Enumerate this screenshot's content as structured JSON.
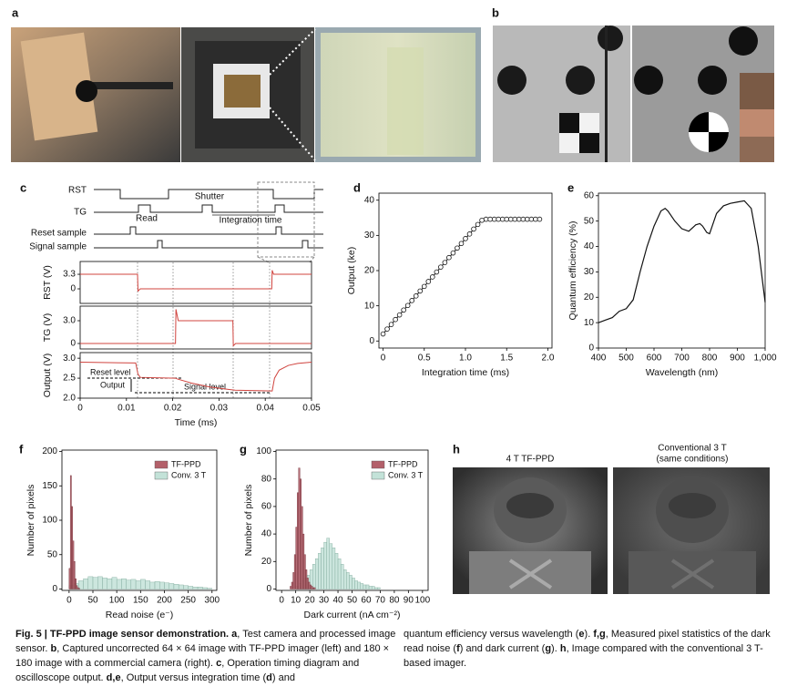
{
  "panel_labels": [
    "a",
    "b",
    "c",
    "d",
    "e",
    "f",
    "g",
    "h"
  ],
  "panel_c": {
    "timing": {
      "signals": [
        "RST",
        "TG",
        "Reset sample",
        "Signal sample"
      ],
      "annotations": [
        "Read",
        "Shutter",
        "Integration time"
      ]
    },
    "scope": {
      "xlabel": "Time (ms)",
      "xlim": [
        0,
        0.05
      ],
      "xticks": [
        0,
        0.01,
        0.02,
        0.03,
        0.04,
        0.05
      ],
      "plots": [
        {
          "ylabel": "RST (V)",
          "ylim": [
            -3.3,
            6.2
          ],
          "yticks": [
            0,
            3.3
          ],
          "x": [
            0,
            0.0124,
            0.0125,
            0.013,
            0.02,
            0.0414,
            0.0415,
            0.0418,
            0.05
          ],
          "y": [
            3.3,
            3.3,
            -0.5,
            0,
            0,
            0,
            4.2,
            3.3,
            3.3
          ]
        },
        {
          "ylabel": "TG (V)",
          "ylim": [
            -0.72,
            4.92
          ],
          "yticks": [
            0,
            {
              "value": 3,
              "label": "3.0"
            }
          ],
          "x": [
            0,
            0.0206,
            0.0207,
            0.0212,
            0.033,
            0.0331,
            0.0336,
            0.05
          ],
          "y": [
            0,
            0,
            4.5,
            3.0,
            3.0,
            -0.3,
            0,
            0
          ]
        },
        {
          "ylabel": "Output (V)",
          "ylim": [
            2.0,
            3.14
          ],
          "yticks": [
            {
              "value": 2,
              "label": "2.0"
            },
            2.5,
            {
              "value": 3,
              "label": "3.0"
            }
          ],
          "x": [
            0,
            0.012,
            0.0125,
            0.013,
            0.0206,
            0.021,
            0.024,
            0.028,
            0.032,
            0.0335,
            0.0415,
            0.042,
            0.043,
            0.045,
            0.047,
            0.05
          ],
          "y": [
            2.9,
            2.88,
            2.6,
            2.52,
            2.5,
            2.48,
            2.38,
            2.28,
            2.22,
            2.2,
            2.18,
            2.5,
            2.7,
            2.82,
            2.87,
            2.9
          ]
        }
      ],
      "annotations": [
        "Reset level",
        "Output",
        "Signal level"
      ]
    }
  },
  "panel_d": {
    "xlabel": "Integration time (ms)",
    "ylabel": "Output (ke)",
    "xlim": [
      -0.05,
      2.05
    ],
    "ylim": [
      -2,
      42
    ],
    "xticks": [
      0,
      0.5,
      {
        "value": 1,
        "label": "1.0"
      },
      1.5,
      {
        "value": 2,
        "label": "2.0"
      }
    ],
    "yticks": [
      0,
      10,
      20,
      30,
      40
    ],
    "x": [
      0,
      0.05,
      0.1,
      0.15,
      0.2,
      0.25,
      0.3,
      0.35,
      0.4,
      0.45,
      0.5,
      0.55,
      0.6,
      0.65,
      0.7,
      0.75,
      0.8,
      0.85,
      0.9,
      0.95,
      1.0,
      1.05,
      1.1,
      1.15,
      1.2,
      1.25,
      1.3,
      1.35,
      1.4,
      1.45,
      1.5,
      1.55,
      1.6,
      1.65,
      1.7,
      1.75,
      1.8,
      1.85,
      1.9
    ],
    "values": [
      2.0,
      3.4,
      4.7,
      6.1,
      7.4,
      8.8,
      10.1,
      11.5,
      12.8,
      14.2,
      15.5,
      16.9,
      18.2,
      19.6,
      21.0,
      22.3,
      23.7,
      25.0,
      26.4,
      27.7,
      29.1,
      30.4,
      31.8,
      33.1,
      34.3,
      34.6,
      34.6,
      34.6,
      34.6,
      34.6,
      34.6,
      34.6,
      34.6,
      34.6,
      34.6,
      34.6,
      34.6,
      34.6,
      34.6
    ],
    "color": "#111111"
  },
  "panel_e": {
    "xlabel": "Wavelength (nm)",
    "ylabel": "Quantum efficiency (%)",
    "xlim": [
      400,
      1000
    ],
    "ylim": [
      0,
      61
    ],
    "xticks": [
      400,
      500,
      600,
      700,
      800,
      900,
      {
        "value": 1000,
        "label": "1,000"
      }
    ],
    "yticks": [
      0,
      10,
      20,
      30,
      40,
      50,
      60
    ],
    "x": [
      400,
      425,
      450,
      475,
      500,
      525,
      550,
      575,
      600,
      625,
      640,
      650,
      675,
      700,
      725,
      750,
      765,
      775,
      790,
      800,
      825,
      850,
      875,
      900,
      925,
      950,
      975,
      1000
    ],
    "values": [
      10,
      11,
      12,
      14.5,
      15.5,
      19,
      30,
      40,
      48,
      54,
      55,
      54,
      50,
      47,
      46,
      48.5,
      49,
      48,
      45.5,
      45,
      53,
      56,
      57,
      57.5,
      58,
      55,
      40,
      18
    ],
    "color": "#111111"
  },
  "panel_f": {
    "xlabel": "Read noise (e⁻)",
    "ylabel": "Number of pixels",
    "xlim": [
      -15,
      310
    ],
    "ylim": [
      -2,
      202
    ],
    "xticks": [
      0,
      50,
      100,
      150,
      200,
      250,
      300
    ],
    "yticks": [
      0,
      50,
      100,
      150,
      200
    ],
    "series": [
      {
        "name": "TF-PPD",
        "color": "#b3606a",
        "bins": [
          0,
          2.5,
          5,
          7.5,
          10,
          12.5,
          15,
          17.5,
          20,
          22.5,
          25,
          27.5,
          30
        ],
        "counts": [
          30,
          165,
          120,
          70,
          40,
          15,
          5,
          2,
          1,
          0,
          0,
          0
        ]
      },
      {
        "name": "Conv. 3 T",
        "color": "#c3e2d8",
        "bins": [
          0,
          10,
          20,
          30,
          40,
          50,
          60,
          70,
          80,
          90,
          100,
          110,
          120,
          130,
          140,
          150,
          160,
          170,
          180,
          190,
          200,
          210,
          220,
          230,
          240,
          250,
          260,
          270,
          280,
          290,
          300
        ],
        "counts": [
          5,
          8,
          12,
          15,
          18,
          17,
          18,
          16,
          15,
          17,
          14,
          15,
          13,
          14,
          12,
          14,
          12,
          10,
          11,
          10,
          9,
          8,
          7,
          6,
          5,
          4,
          3,
          3,
          2,
          1
        ]
      }
    ]
  },
  "panel_g": {
    "xlabel": "Dark current (nA cm⁻²)",
    "ylabel": "Number of pixels",
    "xlim": [
      -4,
      104
    ],
    "ylim": [
      -1,
      101
    ],
    "xticks": [
      0,
      10,
      20,
      30,
      40,
      50,
      60,
      70,
      80,
      90,
      100
    ],
    "yticks": [
      0,
      20,
      40,
      60,
      80,
      100
    ],
    "series": [
      {
        "name": "TF-PPD",
        "color": "#b3606a",
        "bins": [
          6,
          7,
          8,
          9,
          10,
          11,
          12,
          13,
          14,
          15,
          16,
          17,
          18,
          19,
          20,
          21,
          22,
          23,
          24
        ],
        "counts": [
          2,
          5,
          12,
          25,
          45,
          70,
          88,
          80,
          60,
          40,
          25,
          14,
          8,
          5,
          3,
          2,
          1,
          1
        ]
      },
      {
        "name": "Conv. 3 T",
        "color": "#c3e2d8",
        "bins": [
          10,
          12,
          14,
          16,
          18,
          20,
          22,
          24,
          26,
          28,
          30,
          32,
          34,
          36,
          38,
          40,
          42,
          44,
          46,
          48,
          50,
          52,
          54,
          56,
          58,
          60,
          62,
          64,
          66,
          68,
          70
        ],
        "counts": [
          2,
          4,
          6,
          8,
          10,
          14,
          18,
          22,
          26,
          30,
          34,
          37,
          33,
          30,
          26,
          22,
          18,
          14,
          12,
          10,
          8,
          6,
          5,
          4,
          3,
          3,
          2,
          2,
          1,
          1
        ]
      }
    ]
  },
  "panel_h": {
    "titles": [
      "4 T TF-PPD",
      "Conventional 3 T",
      "(same conditions)"
    ]
  },
  "caption": {
    "left": [
      {
        "text": "Fig. 5 | TF-PPD image sensor demonstration. a",
        "bold": true
      },
      {
        "text": ", Test camera and processed image sensor. ",
        "bold": false
      },
      {
        "text": "b",
        "bold": true
      },
      {
        "text": ", Captured uncorrected 64 × 64 image with TF-PPD imager (left) and 180 × 180 image with a commercial camera (right). ",
        "bold": false
      },
      {
        "text": "c",
        "bold": true
      },
      {
        "text": ", Operation timing diagram and oscilloscope output. ",
        "bold": false
      },
      {
        "text": "d,e",
        "bold": true
      },
      {
        "text": ", Output versus integration time (",
        "bold": false
      },
      {
        "text": "d",
        "bold": true
      },
      {
        "text": ") and",
        "bold": false
      }
    ],
    "right": [
      {
        "text": "quantum efficiency versus wavelength (",
        "bold": false
      },
      {
        "text": "e",
        "bold": true
      },
      {
        "text": "). ",
        "bold": false
      },
      {
        "text": "f,g",
        "bold": true
      },
      {
        "text": ", Measured pixel statistics of the dark read noise (",
        "bold": false
      },
      {
        "text": "f",
        "bold": true
      },
      {
        "text": ") and dark current (",
        "bold": false
      },
      {
        "text": "g",
        "bold": true
      },
      {
        "text": "). ",
        "bold": false
      },
      {
        "text": "h",
        "bold": true
      },
      {
        "text": ", Image compared with the conventional 3 T-based imager.",
        "bold": false
      }
    ]
  }
}
